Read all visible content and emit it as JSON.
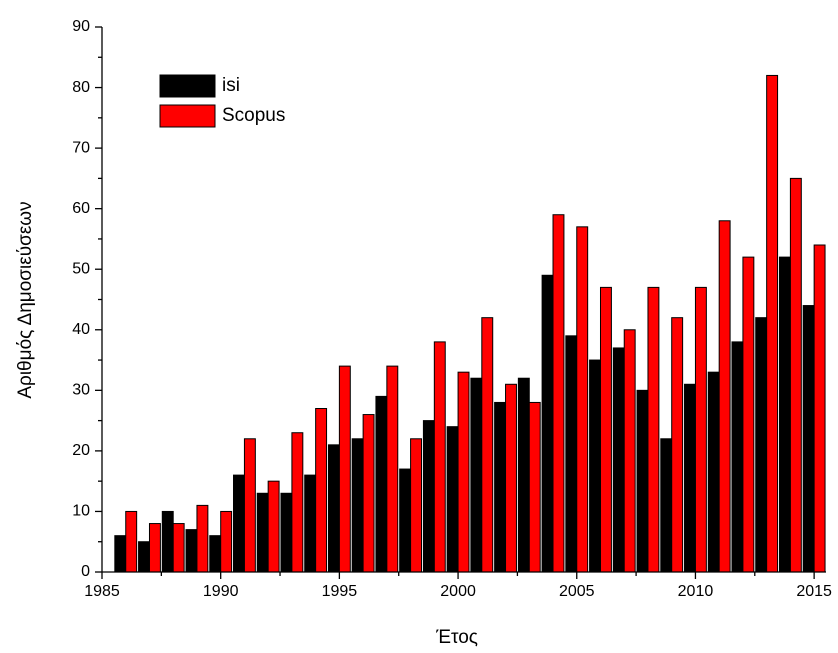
{
  "chart_data": {
    "type": "bar",
    "x_label": "Έτος",
    "y_label": "Αριθμός Δημοσιεύσεων",
    "x": [
      1986,
      1987,
      1988,
      1989,
      1990,
      1991,
      1992,
      1993,
      1994,
      1995,
      1996,
      1997,
      1998,
      1999,
      2000,
      2001,
      2002,
      2003,
      2004,
      2005,
      2006,
      2007,
      2008,
      2009,
      2010,
      2011,
      2012,
      2013,
      2014,
      2015
    ],
    "series": [
      {
        "name": "isi",
        "color": "#000000",
        "values": [
          6,
          5,
          10,
          7,
          6,
          16,
          13,
          13,
          16,
          21,
          22,
          29,
          17,
          25,
          24,
          32,
          28,
          32,
          49,
          39,
          35,
          37,
          30,
          22,
          31,
          33,
          38,
          42,
          52,
          44
        ]
      },
      {
        "name": "Scopus",
        "color": "#ff0000",
        "values": [
          10,
          8,
          8,
          11,
          10,
          22,
          15,
          23,
          27,
          34,
          26,
          34,
          22,
          38,
          33,
          42,
          31,
          28,
          59,
          57,
          47,
          40,
          47,
          42,
          47,
          58,
          52,
          82,
          65,
          54
        ]
      }
    ],
    "xlim": [
      1985,
      2015.5
    ],
    "xticks": [
      1985,
      1990,
      1995,
      2000,
      2005,
      2010,
      2015
    ],
    "ylim": [
      0,
      90
    ],
    "yticks": [
      0,
      10,
      20,
      30,
      40,
      50,
      60,
      70,
      80,
      90
    ],
    "legend": "upper left"
  }
}
